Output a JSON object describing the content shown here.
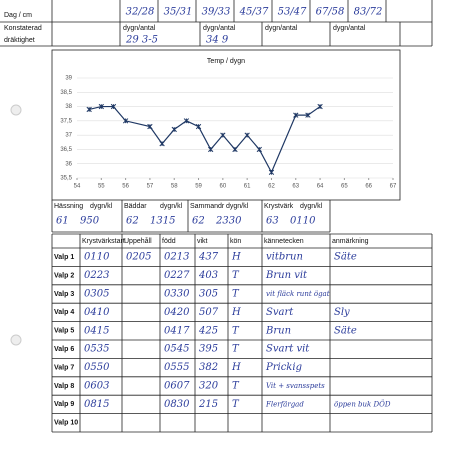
{
  "header": {
    "label": "Dag / cm",
    "measurements": [
      "32/28",
      "35/31",
      "39/33",
      "45/37",
      "53/47",
      "67/58",
      "83/72"
    ]
  },
  "pregnancy": {
    "label": "Konstaterad dräktighet",
    "cells": [
      {
        "label": "dygn/antal",
        "value": "29 3-5"
      },
      {
        "label": "dygn/antal",
        "value": "34 9"
      },
      {
        "label": "dygn/antal"
      },
      {
        "label": "dygn/antal"
      }
    ]
  },
  "chart_data": {
    "type": "line",
    "title": "Temp / dygn",
    "x": [
      54.5,
      55,
      55.5,
      56,
      57,
      57.5,
      58,
      58.5,
      59,
      59.5,
      60,
      60.5,
      61,
      61.5,
      62,
      63,
      63.5,
      64
    ],
    "series": [
      {
        "name": "Temp",
        "color": "#1f3864",
        "values": [
          37.9,
          38.0,
          38.0,
          37.5,
          37.3,
          36.7,
          37.2,
          37.5,
          37.3,
          36.5,
          37.0,
          36.5,
          37.0,
          36.5,
          35.7,
          37.7,
          37.7,
          38.0
        ]
      }
    ],
    "xlim": [
      54,
      67
    ],
    "xticks": [
      54,
      55,
      56,
      57,
      58,
      59,
      60,
      61,
      62,
      63,
      64,
      65,
      66,
      67
    ],
    "ylim": [
      35.5,
      39
    ],
    "yticks": [
      {
        "value": 35.5,
        "label": "35,5"
      },
      36,
      {
        "value": 36.5,
        "label": "36,5"
      },
      37,
      {
        "value": 37.5,
        "label": "37,5"
      },
      38,
      {
        "value": 38.5,
        "label": "38,5"
      },
      39
    ],
    "grid": true
  },
  "events": [
    {
      "label": "Hässning",
      "unit": "dygn/kl",
      "day": "61",
      "time": "950"
    },
    {
      "label": "Bäddar",
      "unit": "dygn/kl",
      "day": "62",
      "time": "1315"
    },
    {
      "label": "Sammandr",
      "unit": "dygn/kl",
      "day": "62",
      "time": "2330"
    },
    {
      "label": "Krystvärk",
      "unit": "dygn/kl",
      "day": "63",
      "time": "0110"
    }
  ],
  "table": {
    "headers": [
      "Krystvärkstart",
      "Uppehåll",
      "född",
      "vikt",
      "kön",
      "kännetecken",
      "anmärkning"
    ],
    "rows": [
      {
        "label": "Valp 1",
        "cells": [
          "0110",
          "0205",
          "0213",
          "437",
          "H",
          "vitbrun",
          "Säte"
        ]
      },
      {
        "label": "Valp 2",
        "cells": [
          "0223",
          null,
          "0227",
          "403",
          "T",
          "Brun vit",
          null
        ]
      },
      {
        "label": "Valp 3",
        "cells": [
          "0305",
          null,
          "0330",
          "305",
          "T",
          "vit fläck runt ögat",
          null
        ]
      },
      {
        "label": "Valp 4",
        "cells": [
          "0410",
          null,
          "0420",
          "507",
          "H",
          "Svart",
          "Sly"
        ]
      },
      {
        "label": "Valp 5",
        "cells": [
          "0415",
          null,
          "0417",
          "425",
          "T",
          "Brun",
          "Säte"
        ]
      },
      {
        "label": "Valp 6",
        "cells": [
          "0535",
          null,
          "0545",
          "395",
          "T",
          "Svart vit",
          null
        ]
      },
      {
        "label": "Valp 7",
        "cells": [
          "0550",
          null,
          "0555",
          "382",
          "H",
          "Prickig",
          null
        ]
      },
      {
        "label": "Valp 8",
        "cells": [
          "0603",
          null,
          "0607",
          "320",
          "T",
          "Vit + svansspets",
          null
        ]
      },
      {
        "label": "Valp 9",
        "cells": [
          "0815",
          null,
          "0830",
          "215",
          "T",
          "Flerfärgad",
          "öppen buk DÖD"
        ]
      },
      {
        "label": "Valp 10",
        "cells": [
          null,
          null,
          null,
          null,
          null,
          null,
          null
        ]
      }
    ]
  }
}
